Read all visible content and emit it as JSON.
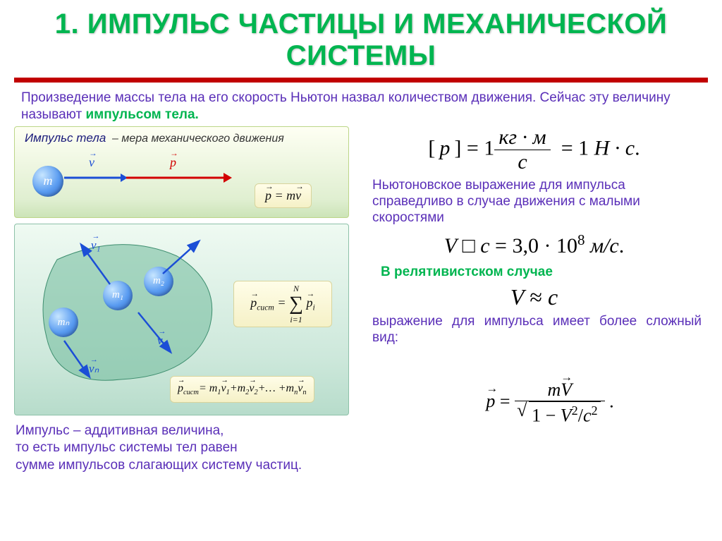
{
  "title": "1. ИМПУЛЬС ЧАСТИЦЫ И МЕХАНИЧЕСКОЙ СИСТЕМЫ",
  "intro_plain": "Произведение массы тела на его скорость Ньютон назвал количеством движения. Сейчас эту величину называют ",
  "intro_accent": "импульсом тела.",
  "panel1": {
    "heading": "Импульс тела",
    "sub": "– мера механического движения",
    "ball_label": "m",
    "v_label": "v",
    "p_label": "p",
    "formula_html": "<span class='vec'>p</span> = m<span class='vec'>v</span>"
  },
  "panel2": {
    "labels": {
      "m1": "m₁",
      "m2": "m₂",
      "mn": "mₙ",
      "v1": "v₁",
      "v2": "v₂",
      "vn": "vₙ"
    },
    "formula_sum_html": "<span class='vec'>p</span><sub>сист</sub> = <span class='sum-sym'><span class='top'>N</span><span class='sig'>∑</span><span class='bot'>i=1</span></span> <span class='vec'>p</span><sub>i</sub>",
    "formula_expand_html": "<span class='vec'>p</span><sub>сист</sub>= m<sub>1</sub><span class='vec'>v</span><sub>1</sub>+m<sub>2</sub><span class='vec'>v</span><sub>2</sub>+… +m<sub>n</sub><span class='vec'>v</span><sub>n</sub>"
  },
  "right": {
    "eq1_html": "[&#8201;<i>p</i>&#8201;] = 1<span class='frac'><span class='num'><i>кг · м</i></span><span class='den'><i>с</i></span></span>&nbsp;&nbsp;= 1 <i>Н · с</i>.",
    "para1": "Ньютоновское выражение для импульса справедливо в случае движения с малыми скоростями",
    "eq2_html": "<i>V</i> □ <i>c</i>&nbsp;= 3,0 · 10<sup>8</sup>&nbsp;<i>м/с</i>.",
    "para_accent": "В релятивистском случае",
    "eq3_html": "<i>V</i> ≈ <i>c</i>",
    "para2": "выражение для импульса имеет более сложный вид:",
    "eq_rel_html": "<span class='vec' style='font-style:italic'>p</span> = <span class='frac'><span class='num'><i>m<span class=\"vec\">V</span></i></span><span class='den'><span class='sqrt'><span class='bar'>1 − <i>V</i><sup>2</sup>/<i>c</i><sup>2</sup></span></span></span></span> ."
  },
  "bottom": "Импульс – аддитивная величина,\nто есть импульс системы тел равен\nсумме импульсов слагающих систему частиц.",
  "colors": {
    "title": "#00b550",
    "bar": "#c10000",
    "text_purple": "#5a2fb8",
    "arrow_blue": "#1b4ed6",
    "arrow_red": "#d20000",
    "ball_gradient": [
      "#c7e6ff",
      "#5a9cf1",
      "#2b5fb8"
    ],
    "panel1_bg": [
      "#fefff3",
      "#cce4b8"
    ],
    "panel2_bg": [
      "#effaf2",
      "#b7dccb"
    ],
    "formula_box_bg": [
      "#fffde8",
      "#f5f1c7"
    ]
  }
}
